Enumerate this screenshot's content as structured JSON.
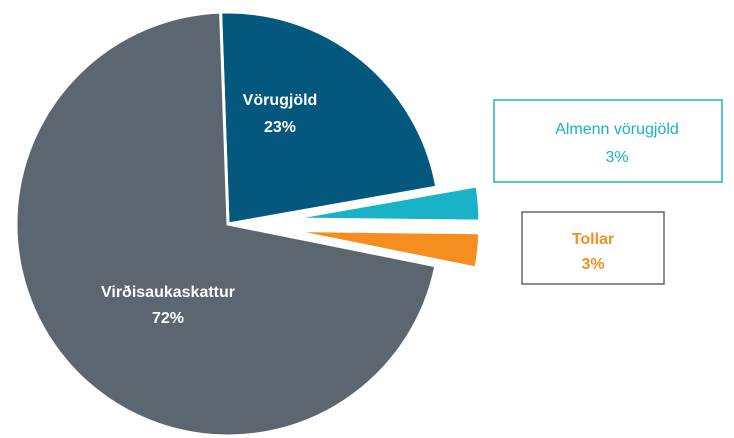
{
  "chart_data": {
    "type": "pie",
    "categories": [
      "Vörugjöld",
      "Almenn vörugjöld",
      "Tollar",
      "Virðisaukaskattur"
    ],
    "values": [
      23,
      3,
      3,
      72
    ],
    "value_labels": [
      "23%",
      "3%",
      "3%",
      "72%"
    ],
    "colors": [
      "#04587e",
      "#1ab2c6",
      "#f68d1f",
      "#5b6670"
    ]
  }
}
